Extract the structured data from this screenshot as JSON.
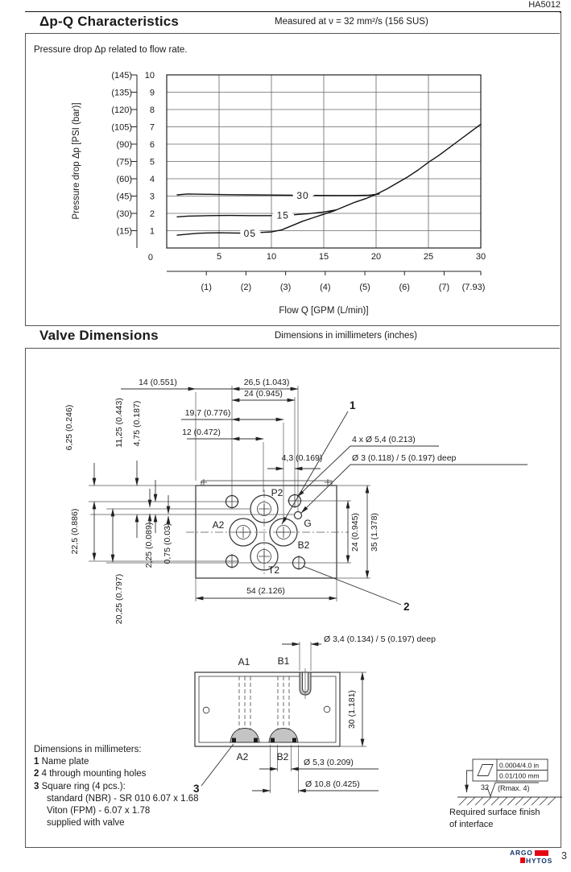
{
  "page": {
    "doc_number": "HA5012",
    "page_number": "3",
    "brand": {
      "line1": "ARGO",
      "line2": "HYTOS"
    }
  },
  "section1": {
    "title": "Δp-Q Characteristics",
    "subtitle": "Measured at  ν = 32 mm²/s (156 SUS)",
    "note": "Pressure drop Δp related to flow rate."
  },
  "section2": {
    "title": "Valve Dimensions",
    "subtitle": "Dimensions in imillimeters (inches)"
  },
  "chart_data": {
    "type": "line",
    "title": "Δp-Q Characteristics",
    "xlabel": "Flow Q [GPM (L/min)]",
    "ylabel": "Pressure drop Δp [PSI (bar)]",
    "xlim": [
      0,
      30
    ],
    "ylim": [
      0,
      10
    ],
    "grid": true,
    "legend": "inline curve labels",
    "origin_label": "0",
    "x_ticks_lmin": [
      0,
      5,
      10,
      15,
      20,
      25,
      30
    ],
    "x_ticks_gpm": [
      "(1)",
      "(2)",
      "(3)",
      "(4)",
      "(5)",
      "(6)",
      "(7)",
      "(7.93)"
    ],
    "x_ticks_gpm_positions_lmin": [
      3.785,
      7.571,
      11.356,
      15.142,
      18.927,
      22.712,
      26.498,
      30
    ],
    "y_ticks_bar": [
      1,
      2,
      3,
      4,
      5,
      6,
      7,
      8,
      9,
      10
    ],
    "y_ticks_psi": [
      "(15)",
      "(30)",
      "(45)",
      "(60)",
      "(75)",
      "(90)",
      "(105)",
      "(120)",
      "(135)",
      "(145)"
    ],
    "series": [
      {
        "name": "05",
        "label_at": [
          7.95,
          0.87
        ],
        "segments": [
          [
            [
              1,
              0.74
            ],
            [
              2,
              0.8
            ],
            [
              3,
              0.85
            ],
            [
              4,
              0.87
            ],
            [
              5,
              0.88
            ],
            [
              6,
              0.87
            ],
            [
              7,
              0.86
            ]
          ],
          [
            [
              9,
              0.9
            ],
            [
              10,
              0.93
            ],
            [
              11,
              1.05
            ],
            [
              12,
              1.3
            ],
            [
              13,
              1.55
            ],
            [
              14,
              1.75
            ],
            [
              15,
              1.95
            ],
            [
              16,
              2.15
            ],
            [
              17,
              2.4
            ],
            [
              18,
              2.65
            ],
            [
              19,
              2.85
            ],
            [
              20,
              3.1
            ],
            [
              21,
              3.4
            ],
            [
              22,
              3.75
            ],
            [
              23,
              4.1
            ],
            [
              24,
              4.5
            ],
            [
              25,
              4.95
            ],
            [
              26,
              5.35
            ],
            [
              27,
              5.8
            ],
            [
              28,
              6.25
            ],
            [
              29,
              6.7
            ],
            [
              30,
              7.15
            ]
          ]
        ]
      },
      {
        "name": "15",
        "label_at": [
          11.1,
          1.9
        ],
        "segments": [
          [
            [
              1,
              1.8
            ],
            [
              2,
              1.84
            ],
            [
              4,
              1.87
            ],
            [
              6,
              1.88
            ],
            [
              8,
              1.87
            ],
            [
              10,
              1.87
            ]
          ],
          [
            [
              12.2,
              1.92
            ],
            [
              13.5,
              1.98
            ],
            [
              15,
              2.08
            ],
            [
              16.2,
              2.2
            ]
          ]
        ]
      },
      {
        "name": "30",
        "label_at": [
          13,
          3.05
        ],
        "segments": [
          [
            [
              1,
              3.07
            ],
            [
              2,
              3.12
            ],
            [
              4,
              3.1
            ],
            [
              6,
              3.08
            ],
            [
              8,
              3.07
            ],
            [
              10,
              3.06
            ],
            [
              12,
              3.05
            ]
          ],
          [
            [
              14.1,
              3.04
            ],
            [
              16,
              3.03
            ],
            [
              18,
              3.03
            ],
            [
              19.3,
              3.05
            ],
            [
              20.3,
              3.12
            ]
          ]
        ]
      }
    ]
  },
  "drawing": {
    "top": {
      "d14": "14 (0.551)",
      "d265": "26,5 (1.043)",
      "d24": "24 (0.945)",
      "d197": "19,7 (0.776)",
      "d12": "12 (0.472)",
      "d43": "4,3 (0.169)",
      "holes_note": "4 x Ø 5,4 (0.213)",
      "pin_note": "Ø 3 (0.118) / 5 (0.197) deep",
      "d625": "6,25 (0.246)",
      "d1125": "11,25 (0.443)",
      "d475": "4,75 (0.187)",
      "d225": "22,5 (0.886)",
      "d2025": "20,25 (0.797)",
      "d225b": "2,25 (0.089)",
      "d075": "0,75 (0.03)",
      "r24": "24 (0.945)",
      "r35": "35 (1.378)",
      "d54": "54 (2.126)",
      "p2": "P2",
      "a2": "A2",
      "b2": "B2",
      "g": "G",
      "t2": "T2",
      "c1": "1",
      "c2": "2"
    },
    "bottom": {
      "pin_note": "Ø 3,4 (0.134) / 5 (0.197) deep",
      "a1": "A1",
      "b1": "B1",
      "a2": "A2",
      "b2": "B2",
      "d30": "30 (1.181)",
      "d53": "Ø 5,3 (0.209)",
      "d108": "Ø 10,8 (0.425)",
      "c3": "3"
    },
    "notes": {
      "header": "Dimensions in millimeters:",
      "items": [
        {
          "num": "1",
          "text": "Name plate"
        },
        {
          "num": "2",
          "text": "4 through mounting holes"
        },
        {
          "num": "3",
          "text": "Square ring (4 pcs.):"
        }
      ],
      "sub": [
        "standard (NBR) - SR 010 6.07 x 1.68",
        "Viton (FPM) - 6.07 x 1.78",
        "supplied with valve"
      ]
    },
    "surface": {
      "flatness_in": "0.0004/4.0 in",
      "flatness_mm": "0.01/100 mm",
      "roughness": "32",
      "rmax": "(Rmax. 4)",
      "caption1": "Required surface finish",
      "caption2": "of interface"
    }
  }
}
